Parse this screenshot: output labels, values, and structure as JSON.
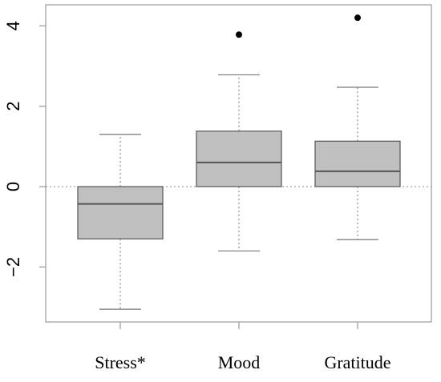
{
  "chart_data": {
    "type": "boxplot",
    "categories": [
      "Stress*",
      "Mood",
      "Gratitude"
    ],
    "boxes": [
      {
        "label": "Stress*",
        "whisker_low": -3.05,
        "q1": -1.3,
        "median": -0.43,
        "q3": 0.0,
        "whisker_high": 1.3,
        "outliers": []
      },
      {
        "label": "Mood",
        "whisker_low": -1.6,
        "q1": 0.0,
        "median": 0.6,
        "q3": 1.38,
        "whisker_high": 2.78,
        "outliers": [
          3.78
        ]
      },
      {
        "label": "Gratitude",
        "whisker_low": -1.32,
        "q1": 0.0,
        "median": 0.38,
        "q3": 1.13,
        "whisker_high": 2.47,
        "outliers": [
          4.2
        ]
      }
    ],
    "y_ticks": [
      -2,
      0,
      2,
      4
    ],
    "ylim": [
      -3.3,
      4.4
    ],
    "reference_line": 0,
    "grid": false,
    "box_fill": "#c0c0c0",
    "box_stroke": "#555555",
    "whisker_color": "#777777",
    "outlier_color": "#000000"
  }
}
